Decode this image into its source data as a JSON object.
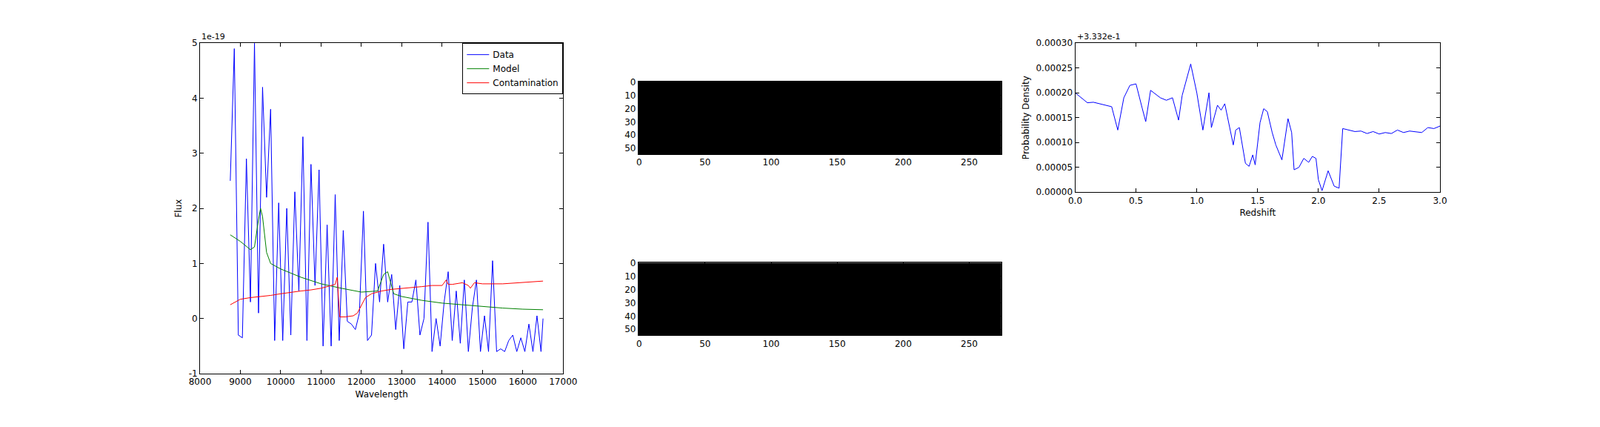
{
  "chart_data": [
    {
      "type": "line",
      "xlabel": "Wavelength",
      "ylabel": "Flux",
      "annotations": [
        "1e-19"
      ],
      "legend": "upper right",
      "grid": false,
      "xlim": [
        8000,
        17000
      ],
      "xticks": [
        8000,
        9000,
        10000,
        11000,
        12000,
        13000,
        14000,
        15000,
        16000,
        17000
      ],
      "ylim": [
        -1,
        5
      ],
      "yticks": [
        -1,
        0,
        1,
        2,
        3,
        4,
        5
      ],
      "series": [
        {
          "name": "Data",
          "color": "#0000ff",
          "x": [
            8750,
            8850,
            8950,
            9050,
            9150,
            9250,
            9350,
            9450,
            9550,
            9650,
            9750,
            9850,
            9950,
            10050,
            10150,
            10250,
            10350,
            10450,
            10550,
            10650,
            10750,
            10850,
            10950,
            11050,
            11150,
            11250,
            11350,
            11450,
            11550,
            11650,
            11750,
            11850,
            11950,
            12050,
            12150,
            12250,
            12350,
            12450,
            12550,
            12650,
            12750,
            12850,
            12950,
            13050,
            13150,
            13250,
            13350,
            13450,
            13550,
            13650,
            13750,
            13850,
            13950,
            14050,
            14150,
            14250,
            14350,
            14450,
            14550,
            14650,
            14750,
            14850,
            14950,
            15050,
            15150,
            15250,
            15350,
            15450,
            15550,
            15650,
            15750,
            15850,
            15950,
            16050,
            16150,
            16250,
            16350,
            16450,
            16500
          ],
          "values": [
            2.5,
            4.9,
            -0.3,
            -0.35,
            2.9,
            0.3,
            5.0,
            0.1,
            4.2,
            2.2,
            3.8,
            -0.4,
            2.1,
            -0.4,
            2.0,
            -0.3,
            2.3,
            0.5,
            3.3,
            -0.4,
            2.8,
            0.6,
            2.7,
            -0.5,
            1.7,
            -0.5,
            2.25,
            -0.4,
            1.6,
            -0.05,
            -0.1,
            -0.2,
            0.1,
            1.95,
            -0.4,
            -0.3,
            1.0,
            0.3,
            1.35,
            0.3,
            0.8,
            -0.2,
            0.6,
            -0.55,
            0.3,
            0.3,
            0.7,
            -0.3,
            0.0,
            1.75,
            -0.6,
            0.0,
            -0.5,
            0.3,
            0.85,
            -0.4,
            0.5,
            -0.45,
            0.7,
            -0.6,
            0.2,
            0.7,
            -0.6,
            0.05,
            -0.6,
            1.05,
            -0.6,
            -0.55,
            -0.6,
            -0.4,
            -0.3,
            -0.6,
            -0.35,
            -0.6,
            -0.1,
            -0.6,
            0.05,
            -0.6,
            0.0
          ]
        },
        {
          "name": "Model",
          "color": "#008000",
          "x": [
            8750,
            9000,
            9250,
            9350,
            9450,
            9500,
            9550,
            9650,
            9750,
            10000,
            10500,
            11000,
            11500,
            12000,
            12400,
            12550,
            12650,
            12800,
            13000,
            13500,
            14000,
            14500,
            15000,
            15500,
            16000,
            16500
          ],
          "values": [
            1.52,
            1.4,
            1.25,
            1.3,
            1.8,
            2.0,
            1.85,
            1.2,
            1.0,
            0.9,
            0.75,
            0.63,
            0.55,
            0.48,
            0.5,
            0.8,
            0.85,
            0.45,
            0.4,
            0.33,
            0.28,
            0.25,
            0.21,
            0.19,
            0.17,
            0.16
          ]
        },
        {
          "name": "Contamination",
          "color": "#ff0000",
          "x": [
            8750,
            9000,
            9250,
            9500,
            9750,
            10000,
            10250,
            10500,
            10750,
            11000,
            11250,
            11350,
            11400,
            11430,
            11460,
            11600,
            11800,
            11900,
            12000,
            12100,
            12250,
            12500,
            12750,
            13000,
            13250,
            13500,
            13750,
            14000,
            14100,
            14150,
            14250,
            14500,
            14650,
            14700,
            14800,
            15000,
            15500,
            16000,
            16500
          ],
          "values": [
            0.25,
            0.35,
            0.38,
            0.4,
            0.42,
            0.45,
            0.47,
            0.5,
            0.52,
            0.55,
            0.6,
            0.62,
            0.75,
            0.4,
            0.03,
            0.03,
            0.05,
            0.1,
            0.25,
            0.38,
            0.45,
            0.5,
            0.53,
            0.55,
            0.57,
            0.58,
            0.6,
            0.6,
            0.7,
            0.62,
            0.62,
            0.65,
            0.6,
            0.55,
            0.65,
            0.63,
            0.63,
            0.65,
            0.68
          ]
        }
      ]
    },
    {
      "type": "heatmap",
      "image": {
        "rows": 55,
        "columns": 275,
        "value": 0
      },
      "color": "#000000",
      "grid": false,
      "xlim": [
        -0.5,
        274.5
      ],
      "xticks": [
        0,
        50,
        100,
        150,
        200,
        250
      ],
      "ylim": [
        54.5,
        -0.5
      ],
      "yticks": [
        0,
        10,
        20,
        30,
        40,
        50
      ]
    },
    {
      "type": "heatmap",
      "image": {
        "rows": 55,
        "columns": 275,
        "value": 0
      },
      "color": "#000000",
      "grid": false,
      "xlim": [
        -0.5,
        274.5
      ],
      "xticks": [
        0,
        50,
        100,
        150,
        200,
        250
      ],
      "ylim": [
        54.5,
        -0.5
      ],
      "yticks": [
        0,
        10,
        20,
        30,
        40,
        50
      ]
    },
    {
      "type": "line",
      "xlabel": "Redshift",
      "ylabel": "Probability Density",
      "annotations": [
        "+3.332e-1"
      ],
      "grid": false,
      "color": "#0000ff",
      "xlim": [
        0,
        3
      ],
      "xticks": [
        {
          "value": 0,
          "label": "0.0"
        },
        {
          "value": 0.5,
          "label": "0.5"
        },
        {
          "value": 1,
          "label": "1.0"
        },
        {
          "value": 1.5,
          "label": "1.5"
        },
        {
          "value": 2,
          "label": "2.0"
        },
        {
          "value": 2.5,
          "label": "2.5"
        },
        {
          "value": 3,
          "label": "3.0"
        }
      ],
      "ylim": [
        0,
        0.0003
      ],
      "yticks": [
        {
          "value": 0,
          "label": "0.00000"
        },
        {
          "value": 5e-05,
          "label": "0.00005"
        },
        {
          "value": 0.0001,
          "label": "0.00010"
        },
        {
          "value": 0.00015,
          "label": "0.00015"
        },
        {
          "value": 0.0002,
          "label": "0.00020"
        },
        {
          "value": 0.00025,
          "label": "0.00025"
        },
        {
          "value": 0.0003,
          "label": "0.00030"
        }
      ],
      "x": [
        0,
        0.05,
        0.1,
        0.15,
        0.2,
        0.25,
        0.3,
        0.35,
        0.4,
        0.45,
        0.5,
        0.55,
        0.58,
        0.62,
        0.7,
        0.75,
        0.8,
        0.85,
        0.88,
        0.95,
        1.0,
        1.05,
        1.1,
        1.12,
        1.17,
        1.2,
        1.23,
        1.3,
        1.32,
        1.35,
        1.4,
        1.43,
        1.46,
        1.48,
        1.52,
        1.55,
        1.58,
        1.62,
        1.65,
        1.7,
        1.75,
        1.78,
        1.8,
        1.84,
        1.88,
        1.92,
        1.95,
        1.98,
        2.0,
        2.03,
        2.08,
        2.13,
        2.17,
        2.2,
        2.25,
        2.3,
        2.35,
        2.4,
        2.45,
        2.5,
        2.55,
        2.6,
        2.65,
        2.7,
        2.75,
        2.8,
        2.85,
        2.9,
        2.95,
        3.0
      ],
      "values": [
        0.0002,
        0.00019,
        0.00018,
        0.000181,
        0.000178,
        0.000174,
        0.000172,
        0.000125,
        0.00019,
        0.000215,
        0.000218,
        0.00017,
        0.000142,
        0.000205,
        0.00019,
        0.000185,
        0.00019,
        0.000145,
        0.000195,
        0.000258,
        0.0002,
        0.000125,
        0.0002,
        0.00013,
        0.000175,
        0.000165,
        0.000178,
        9.5e-05,
        0.000125,
        0.00013,
        5.8e-05,
        5.2e-05,
        7.5e-05,
        5.5e-05,
        0.00014,
        0.000168,
        0.000162,
        0.00012,
        9.5e-05,
        6.5e-05,
        0.000148,
        0.00012,
        4.5e-05,
        5e-05,
        6.8e-05,
        6e-05,
        7.2e-05,
        6.8e-05,
        2.5e-05,
        3e-06,
        4.3e-05,
        1.2e-05,
        8e-06,
        0.000128,
        0.000125,
        0.000122,
        0.000123,
        0.000118,
        0.000122,
        0.000117,
        0.00012,
        0.000118,
        0.000125,
        0.00012,
        0.000123,
        0.000122,
        0.00012,
        0.00013,
        0.000128,
        0.000133
      ]
    }
  ]
}
